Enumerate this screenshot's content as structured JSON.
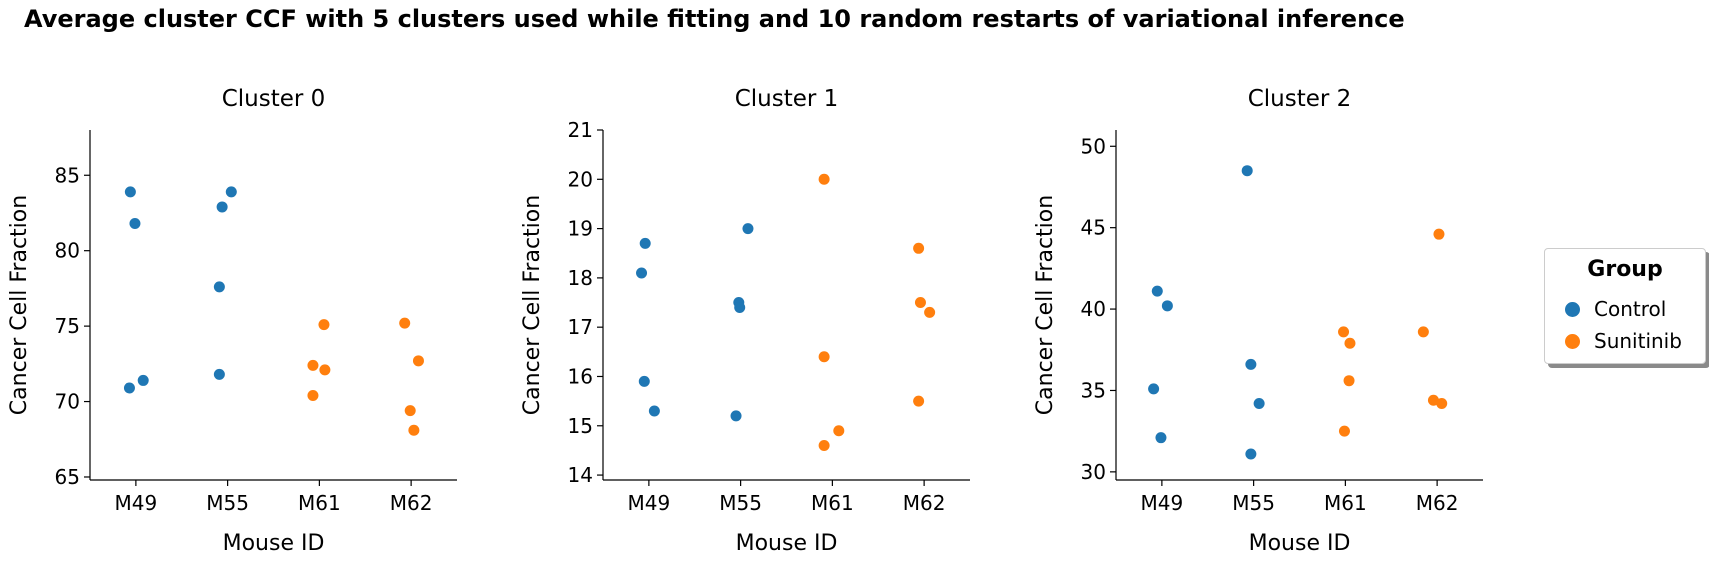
{
  "figure": {
    "title": "Average cluster CCF with 5 clusters used while fitting and 10 random restarts of variational inference"
  },
  "legend": {
    "title": "Group",
    "placement": "right",
    "items": [
      {
        "label": "Control",
        "color": "#1f77b4"
      },
      {
        "label": "Sunitinib",
        "color": "#ff7f0e"
      }
    ]
  },
  "chart_data": [
    {
      "type": "scatter",
      "title": "Cluster 0",
      "xlabel": "Mouse ID",
      "ylabel": "Cancer Cell Fraction",
      "categories": [
        "M49",
        "M55",
        "M61",
        "M62"
      ],
      "ylim": [
        64.8,
        88
      ],
      "yticks": [
        65,
        70,
        75,
        80,
        85
      ],
      "grid": false,
      "series": [
        {
          "name": "Control",
          "color": "#1f77b4",
          "points": [
            {
              "cat": "M49",
              "jitter": -0.06,
              "y": 83.9
            },
            {
              "cat": "M49",
              "jitter": -0.01,
              "y": 81.8
            },
            {
              "cat": "M49",
              "jitter": 0.08,
              "y": 71.4
            },
            {
              "cat": "M49",
              "jitter": -0.07,
              "y": 70.9
            },
            {
              "cat": "M55",
              "jitter": -0.06,
              "y": 82.9
            },
            {
              "cat": "M55",
              "jitter": 0.04,
              "y": 83.9
            },
            {
              "cat": "M55",
              "jitter": -0.09,
              "y": 77.6
            },
            {
              "cat": "M55",
              "jitter": -0.09,
              "y": 71.8
            }
          ]
        },
        {
          "name": "Sunitinib",
          "color": "#ff7f0e",
          "points": [
            {
              "cat": "M61",
              "jitter": 0.05,
              "y": 75.1
            },
            {
              "cat": "M61",
              "jitter": -0.07,
              "y": 72.4
            },
            {
              "cat": "M61",
              "jitter": 0.06,
              "y": 72.1
            },
            {
              "cat": "M61",
              "jitter": -0.07,
              "y": 70.4
            },
            {
              "cat": "M62",
              "jitter": -0.07,
              "y": 75.2
            },
            {
              "cat": "M62",
              "jitter": 0.08,
              "y": 72.7
            },
            {
              "cat": "M62",
              "jitter": -0.01,
              "y": 69.4
            },
            {
              "cat": "M62",
              "jitter": 0.03,
              "y": 68.1
            }
          ]
        }
      ]
    },
    {
      "type": "scatter",
      "title": "Cluster 1",
      "xlabel": "Mouse ID",
      "ylabel": "Cancer Cell Fraction",
      "categories": [
        "M49",
        "M55",
        "M61",
        "M62"
      ],
      "ylim": [
        13.9,
        21
      ],
      "yticks": [
        14,
        15,
        16,
        17,
        18,
        19,
        20,
        21
      ],
      "grid": false,
      "series": [
        {
          "name": "Control",
          "color": "#1f77b4",
          "points": [
            {
              "cat": "M49",
              "jitter": -0.04,
              "y": 18.7
            },
            {
              "cat": "M49",
              "jitter": -0.08,
              "y": 18.1
            },
            {
              "cat": "M49",
              "jitter": -0.05,
              "y": 15.9
            },
            {
              "cat": "M49",
              "jitter": 0.06,
              "y": 15.3
            },
            {
              "cat": "M55",
              "jitter": 0.08,
              "y": 19.0
            },
            {
              "cat": "M55",
              "jitter": -0.02,
              "y": 17.5
            },
            {
              "cat": "M55",
              "jitter": -0.01,
              "y": 17.4
            },
            {
              "cat": "M55",
              "jitter": -0.05,
              "y": 15.2
            }
          ]
        },
        {
          "name": "Sunitinib",
          "color": "#ff7f0e",
          "points": [
            {
              "cat": "M61",
              "jitter": -0.09,
              "y": 20.0
            },
            {
              "cat": "M61",
              "jitter": -0.09,
              "y": 16.4
            },
            {
              "cat": "M61",
              "jitter": 0.07,
              "y": 14.9
            },
            {
              "cat": "M61",
              "jitter": -0.09,
              "y": 14.6
            },
            {
              "cat": "M62",
              "jitter": -0.06,
              "y": 18.6
            },
            {
              "cat": "M62",
              "jitter": -0.04,
              "y": 17.5
            },
            {
              "cat": "M62",
              "jitter": 0.06,
              "y": 17.3
            },
            {
              "cat": "M62",
              "jitter": -0.06,
              "y": 15.5
            }
          ]
        }
      ]
    },
    {
      "type": "scatter",
      "title": "Cluster 2",
      "xlabel": "Mouse ID",
      "ylabel": "Cancer Cell Fraction",
      "categories": [
        "M49",
        "M55",
        "M61",
        "M62"
      ],
      "ylim": [
        29.5,
        51
      ],
      "yticks": [
        30,
        35,
        40,
        45,
        50
      ],
      "grid": false,
      "series": [
        {
          "name": "Control",
          "color": "#1f77b4",
          "points": [
            {
              "cat": "M49",
              "jitter": -0.05,
              "y": 41.1
            },
            {
              "cat": "M49",
              "jitter": 0.06,
              "y": 40.2
            },
            {
              "cat": "M49",
              "jitter": -0.09,
              "y": 35.1
            },
            {
              "cat": "M49",
              "jitter": -0.01,
              "y": 32.1
            },
            {
              "cat": "M55",
              "jitter": -0.07,
              "y": 48.5
            },
            {
              "cat": "M55",
              "jitter": -0.03,
              "y": 36.6
            },
            {
              "cat": "M55",
              "jitter": 0.06,
              "y": 34.2
            },
            {
              "cat": "M55",
              "jitter": -0.03,
              "y": 31.1
            }
          ]
        },
        {
          "name": "Sunitinib",
          "color": "#ff7f0e",
          "points": [
            {
              "cat": "M61",
              "jitter": -0.02,
              "y": 38.6
            },
            {
              "cat": "M61",
              "jitter": 0.05,
              "y": 37.9
            },
            {
              "cat": "M61",
              "jitter": 0.04,
              "y": 35.6
            },
            {
              "cat": "M61",
              "jitter": -0.01,
              "y": 32.5
            },
            {
              "cat": "M62",
              "jitter": 0.02,
              "y": 44.6
            },
            {
              "cat": "M62",
              "jitter": -0.15,
              "y": 38.6
            },
            {
              "cat": "M62",
              "jitter": -0.04,
              "y": 34.4
            },
            {
              "cat": "M62",
              "jitter": 0.05,
              "y": 34.2
            }
          ]
        }
      ]
    }
  ]
}
